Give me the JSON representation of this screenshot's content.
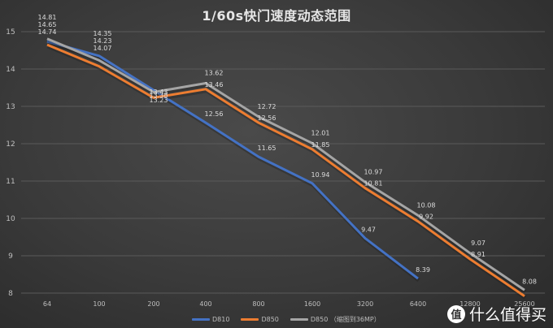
{
  "chart_data": {
    "type": "line",
    "title": "1/60s快门速度动态范围",
    "xlabel": "",
    "ylabel": "",
    "categories": [
      "64",
      "100",
      "200",
      "400",
      "800",
      "1600",
      "3200",
      "6400",
      "12800",
      "25600"
    ],
    "ylim": [
      8,
      15
    ],
    "yticks": [
      8,
      9,
      10,
      11,
      12,
      13,
      14,
      15
    ],
    "grid": true,
    "legend_position": "bottom",
    "series": [
      {
        "name": "D810",
        "color": "#4472c4",
        "values": [
          14.74,
          14.35,
          13.43,
          12.56,
          11.65,
          10.94,
          9.47,
          8.39,
          null,
          null
        ],
        "labels": [
          "14.74",
          "14.35",
          "13.43",
          "12.56",
          "11.65",
          "10.94",
          "9.47",
          "8.39",
          "",
          ""
        ]
      },
      {
        "name": "D850",
        "color": "#ed7d31",
        "values": [
          14.65,
          14.07,
          13.23,
          13.46,
          12.56,
          11.85,
          10.81,
          9.92,
          8.91,
          7.92
        ],
        "labels": [
          "14.65",
          "14.07",
          "13.23",
          "13.46",
          "12.56",
          "11.85",
          "10.81",
          "9.92",
          "8.91",
          ""
        ]
      },
      {
        "name": "D850 （缩图到36MP）",
        "color": "#a5a5a5",
        "values": [
          14.81,
          14.23,
          13.38,
          13.62,
          12.72,
          12.01,
          10.97,
          10.08,
          9.07,
          8.08
        ],
        "labels": [
          "14.81",
          "14.23",
          "13.38",
          "13.62",
          "12.72",
          "12.01",
          "10.97",
          "10.08",
          "9.07",
          "8.08"
        ]
      }
    ]
  },
  "legend": {
    "items": [
      {
        "label": "D810",
        "color": "#4472c4"
      },
      {
        "label": "D850",
        "color": "#ed7d31"
      },
      {
        "label": "D850 （缩图到36MP）",
        "color": "#a5a5a5"
      }
    ]
  },
  "watermark": {
    "icon_char": "值",
    "text": "什么值得买"
  }
}
